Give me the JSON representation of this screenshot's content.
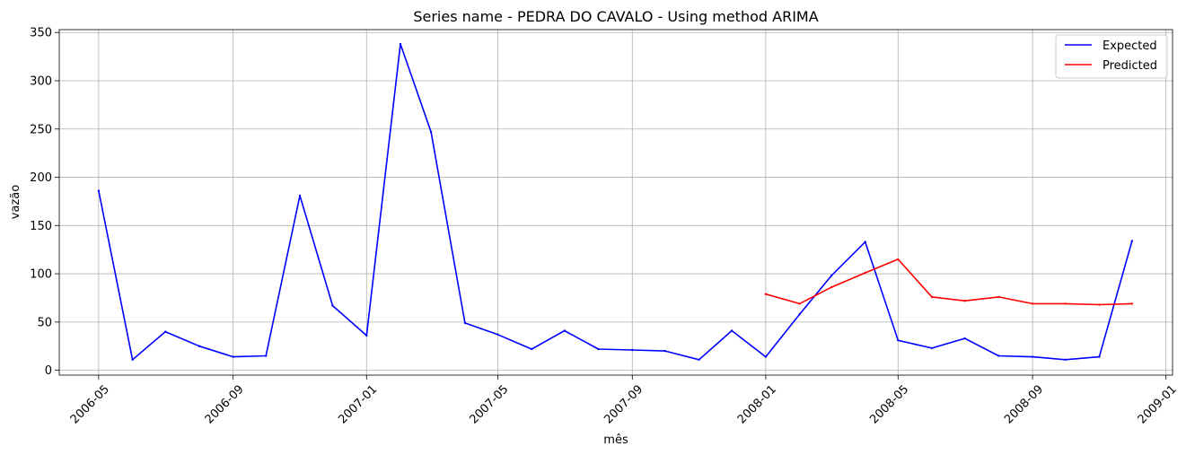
{
  "chart_data": {
    "type": "line",
    "title": "Series name - PEDRA DO CAVALO - Using method ARIMA",
    "xlabel": "mês",
    "ylabel": "vazão",
    "grid": true,
    "legend_position": "top-right",
    "xlim": [
      "2006-03-26",
      "2009-01-07"
    ],
    "ylim": [
      -5,
      353
    ],
    "x_ticks": [
      "2006-05",
      "2006-09",
      "2007-01",
      "2007-05",
      "2007-09",
      "2008-01",
      "2008-05",
      "2008-09",
      "2009-01"
    ],
    "y_ticks": [
      0,
      50,
      100,
      150,
      200,
      250,
      300,
      350
    ],
    "series": [
      {
        "name": "Expected",
        "color": "#0000ff",
        "x": [
          "2006-05",
          "2006-06",
          "2006-07",
          "2006-08",
          "2006-09",
          "2006-10",
          "2006-11",
          "2006-12",
          "2007-01",
          "2007-02",
          "2007-03",
          "2007-04",
          "2007-05",
          "2007-06",
          "2007-07",
          "2007-08",
          "2007-09",
          "2007-10",
          "2007-11",
          "2007-12",
          "2008-01",
          "2008-02",
          "2008-03",
          "2008-04",
          "2008-05",
          "2008-06",
          "2008-07",
          "2008-08",
          "2008-09",
          "2008-10",
          "2008-11",
          "2008-12"
        ],
        "values": [
          186,
          11,
          40,
          25,
          14,
          15,
          181,
          67,
          36,
          338,
          247,
          49,
          37,
          22,
          41,
          22,
          21,
          20,
          11,
          41,
          14,
          58,
          98,
          133,
          31,
          23,
          33,
          15,
          14,
          11,
          14,
          134
        ]
      },
      {
        "name": "Predicted",
        "color": "#ff0000",
        "x": [
          "2008-01",
          "2008-02",
          "2008-03",
          "2008-04",
          "2008-05",
          "2008-06",
          "2008-07",
          "2008-08",
          "2008-09",
          "2008-10",
          "2008-11",
          "2008-12"
        ],
        "values": [
          79,
          69,
          86,
          101,
          115,
          76,
          72,
          76,
          69,
          69,
          68,
          69
        ]
      }
    ]
  }
}
